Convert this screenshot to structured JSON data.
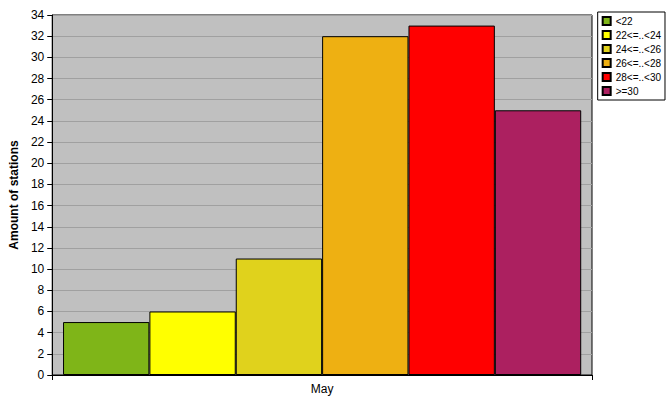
{
  "chart_data": {
    "type": "bar",
    "y_label": "Amount of stations",
    "categories": [
      "May"
    ],
    "series": [
      {
        "name": "<22",
        "color": "#7fb518",
        "values": [
          5
        ]
      },
      {
        "name": "22<=..<24",
        "color": "#ffff00",
        "values": [
          6
        ]
      },
      {
        "name": "24<=..<26",
        "color": "#e0d21c",
        "values": [
          11
        ]
      },
      {
        "name": "26<=..<28",
        "color": "#eeb012",
        "values": [
          32
        ]
      },
      {
        "name": "28<=..<30",
        "color": "#ff0000",
        "values": [
          33
        ]
      },
      {
        "name": ">=30",
        "color": "#ac2060",
        "values": [
          25
        ]
      }
    ],
    "ylim": [
      0,
      34
    ],
    "yticks": [
      0,
      2,
      4,
      6,
      8,
      10,
      12,
      14,
      16,
      18,
      20,
      22,
      24,
      26,
      28,
      30,
      32,
      34
    ],
    "grid": true,
    "legend": "upper right"
  }
}
